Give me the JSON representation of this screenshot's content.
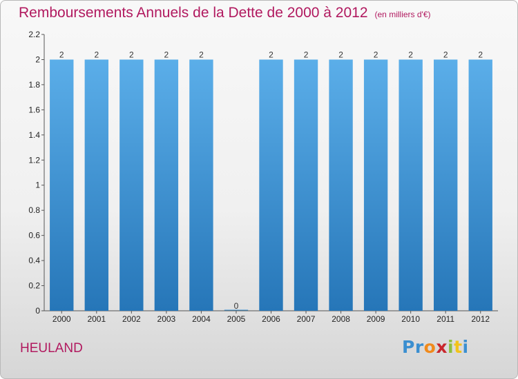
{
  "header": {
    "title": "Remboursements Annuels de la Dette de 2000 à 2012",
    "unit": "(en milliers d'€)"
  },
  "commune": "HEULAND",
  "logo": {
    "letters": [
      "P",
      "r",
      "o",
      "x",
      "i",
      "t",
      "i"
    ],
    "colors": [
      "#3b8fd0",
      "#3b8fd0",
      "#f08a1c",
      "#c8272d",
      "#8cbf3f",
      "#f2c31b",
      "#3b8fd0"
    ]
  },
  "chart_data": {
    "type": "bar",
    "categories": [
      "2000",
      "2001",
      "2002",
      "2003",
      "2004",
      "2005",
      "2006",
      "2007",
      "2008",
      "2009",
      "2010",
      "2011",
      "2012"
    ],
    "values": [
      2,
      2,
      2,
      2,
      2,
      0,
      2,
      2,
      2,
      2,
      2,
      2,
      2
    ],
    "data_labels": [
      "2",
      "2",
      "2",
      "2",
      "2",
      "0",
      "2",
      "2",
      "2",
      "2",
      "2",
      "2",
      "2"
    ],
    "ylim": [
      0,
      2.2
    ],
    "y_ticks": [
      "0",
      "0.2",
      "0.4",
      "0.6",
      "0.8",
      "1",
      "1.2",
      "1.4",
      "1.6",
      "1.8",
      "2",
      "2.2"
    ],
    "grid": false,
    "bar_color": "#3f97d8"
  }
}
